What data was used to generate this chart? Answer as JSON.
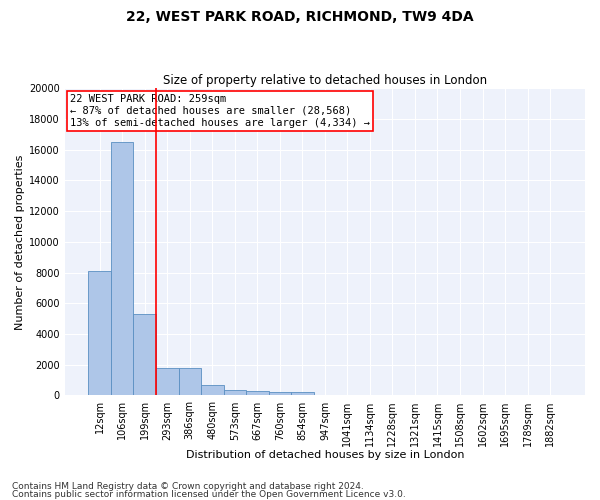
{
  "title1": "22, WEST PARK ROAD, RICHMOND, TW9 4DA",
  "title2": "Size of property relative to detached houses in London",
  "xlabel": "Distribution of detached houses by size in London",
  "ylabel": "Number of detached properties",
  "categories": [
    "12sqm",
    "106sqm",
    "199sqm",
    "293sqm",
    "386sqm",
    "480sqm",
    "573sqm",
    "667sqm",
    "760sqm",
    "854sqm",
    "947sqm",
    "1041sqm",
    "1134sqm",
    "1228sqm",
    "1321sqm",
    "1415sqm",
    "1508sqm",
    "1602sqm",
    "1695sqm",
    "1789sqm",
    "1882sqm"
  ],
  "values": [
    8100,
    16500,
    5300,
    1800,
    1800,
    650,
    350,
    280,
    220,
    200,
    0,
    0,
    0,
    0,
    0,
    0,
    0,
    0,
    0,
    0,
    0
  ],
  "bar_color": "#aec6e8",
  "bar_edge_color": "#5a8fc2",
  "red_line_x": 2.5,
  "annotation_title": "22 WEST PARK ROAD: 259sqm",
  "annotation_line1": "← 87% of detached houses are smaller (28,568)",
  "annotation_line2": "13% of semi-detached houses are larger (4,334) →",
  "ylim": [
    0,
    20000
  ],
  "yticks": [
    0,
    2000,
    4000,
    6000,
    8000,
    10000,
    12000,
    14000,
    16000,
    18000,
    20000
  ],
  "footnote1": "Contains HM Land Registry data © Crown copyright and database right 2024.",
  "footnote2": "Contains public sector information licensed under the Open Government Licence v3.0.",
  "background_color": "#eef2fb",
  "grid_color": "#ffffff",
  "title1_fontsize": 10,
  "title2_fontsize": 8.5,
  "xlabel_fontsize": 8,
  "ylabel_fontsize": 8,
  "tick_fontsize": 7,
  "annotation_fontsize": 7.5,
  "footnote_fontsize": 6.5
}
